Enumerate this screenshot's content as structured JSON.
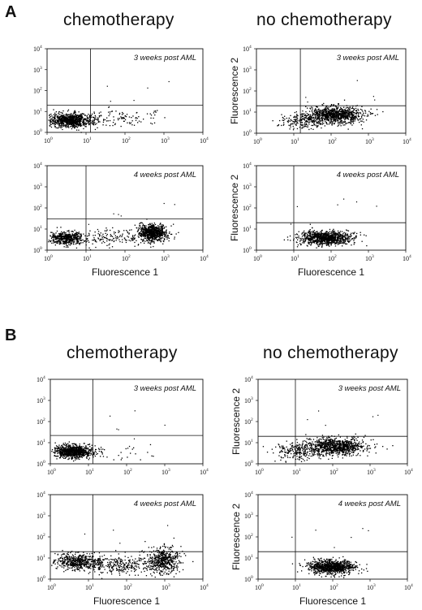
{
  "figure": {
    "panels": [
      {
        "letter": "A",
        "titles": [
          "chemotherapy",
          "no chemotherapy"
        ]
      },
      {
        "letter": "B",
        "titles": [
          "chemotherapy",
          "no chemotherapy"
        ]
      }
    ]
  },
  "chart_data": [
    {
      "type": "scatter",
      "panel": "A",
      "column": "chemotherapy",
      "annotation": "3 weeks post AML",
      "xlabel": "",
      "ylabel": "",
      "x_scale": "log",
      "y_scale": "log",
      "xlim": [
        1,
        10000
      ],
      "ylim": [
        1,
        10000
      ],
      "x_ticks": [
        "10",
        "10",
        "10",
        "10",
        "10"
      ],
      "y_ticks": [
        "10",
        "10",
        "10",
        "10",
        "10"
      ],
      "tick_exponents": [
        "0",
        "1",
        "2",
        "3",
        "4"
      ],
      "gates": {
        "x": 13,
        "y": 20
      },
      "clusters": [
        {
          "x": 4,
          "y": 4,
          "spread_x": 0.28,
          "spread_y": 0.16,
          "n": 900
        },
        {
          "x": 60,
          "y": 5,
          "spread_x": 0.55,
          "spread_y": 0.2,
          "n": 110
        }
      ]
    },
    {
      "type": "scatter",
      "panel": "A",
      "column": "no chemotherapy",
      "annotation": "3 weeks post AML",
      "xlabel": "",
      "ylabel": "Fluorescence 2",
      "x_scale": "log",
      "y_scale": "log",
      "xlim": [
        1,
        10000
      ],
      "ylim": [
        1,
        10000
      ],
      "x_ticks": [
        "10",
        "10",
        "10",
        "10",
        "10"
      ],
      "y_ticks": [
        "10",
        "10",
        "10",
        "10",
        "10"
      ],
      "tick_exponents": [
        "0",
        "1",
        "2",
        "3",
        "4"
      ],
      "gates": {
        "x": 15,
        "y": 20
      },
      "clusters": [
        {
          "x": 120,
          "y": 8,
          "spread_x": 0.38,
          "spread_y": 0.2,
          "n": 950
        },
        {
          "x": 20,
          "y": 4,
          "spread_x": 0.35,
          "spread_y": 0.2,
          "n": 200
        }
      ]
    },
    {
      "type": "scatter",
      "panel": "A",
      "column": "chemotherapy",
      "annotation": "4 weeks post AML",
      "xlabel": "Fluorescence 1",
      "ylabel": "",
      "x_scale": "log",
      "y_scale": "log",
      "xlim": [
        1,
        10000
      ],
      "ylim": [
        1,
        10000
      ],
      "x_ticks": [
        "10",
        "10",
        "10",
        "10",
        "10"
      ],
      "y_ticks": [
        "10",
        "10",
        "10",
        "10",
        "10"
      ],
      "tick_exponents": [
        "0",
        "1",
        "2",
        "3",
        "4"
      ],
      "gates": {
        "x": 10,
        "y": 30
      },
      "clusters": [
        {
          "x": 3,
          "y": 4,
          "spread_x": 0.22,
          "spread_y": 0.15,
          "n": 500
        },
        {
          "x": 500,
          "y": 7,
          "spread_x": 0.18,
          "spread_y": 0.2,
          "n": 800
        },
        {
          "x": 40,
          "y": 4,
          "spread_x": 0.45,
          "spread_y": 0.2,
          "n": 150
        }
      ]
    },
    {
      "type": "scatter",
      "panel": "A",
      "column": "no chemotherapy",
      "annotation": "4 weeks post AML",
      "xlabel": "Fluorescence 1",
      "ylabel": "Fluorescence 2",
      "x_scale": "log",
      "y_scale": "log",
      "xlim": [
        1,
        10000
      ],
      "ylim": [
        1,
        10000
      ],
      "x_ticks": [
        "10",
        "10",
        "10",
        "10",
        "10"
      ],
      "y_ticks": [
        "10",
        "10",
        "10",
        "10",
        "10"
      ],
      "tick_exponents": [
        "0",
        "1",
        "2",
        "3",
        "4"
      ],
      "gates": {
        "x": 10,
        "y": 20
      },
      "clusters": [
        {
          "x": 70,
          "y": 4,
          "spread_x": 0.35,
          "spread_y": 0.16,
          "n": 1000
        }
      ]
    },
    {
      "type": "scatter",
      "panel": "B",
      "column": "chemotherapy",
      "annotation": "3 weeks post AML",
      "xlabel": "",
      "ylabel": "",
      "x_scale": "log",
      "y_scale": "log",
      "xlim": [
        1,
        10000
      ],
      "ylim": [
        1,
        10000
      ],
      "x_ticks": [
        "10",
        "10",
        "10",
        "10",
        "10"
      ],
      "y_ticks": [
        "10",
        "10",
        "10",
        "10",
        "10"
      ],
      "tick_exponents": [
        "0",
        "1",
        "2",
        "3",
        "4"
      ],
      "gates": {
        "x": 13,
        "y": 22
      },
      "clusters": [
        {
          "x": 4,
          "y": 4,
          "spread_x": 0.25,
          "spread_y": 0.15,
          "n": 900
        },
        {
          "x": 80,
          "y": 3,
          "spread_x": 0.5,
          "spread_y": 0.2,
          "n": 30
        }
      ]
    },
    {
      "type": "scatter",
      "panel": "B",
      "column": "no chemotherapy",
      "annotation": "3 weeks post AML",
      "xlabel": "",
      "ylabel": "Fluorescence 2",
      "x_scale": "log",
      "y_scale": "log",
      "xlim": [
        1,
        10000
      ],
      "ylim": [
        1,
        10000
      ],
      "x_ticks": [
        "10",
        "10",
        "10",
        "10",
        "10"
      ],
      "y_ticks": [
        "10",
        "10",
        "10",
        "10",
        "10"
      ],
      "tick_exponents": [
        "0",
        "1",
        "2",
        "3",
        "4"
      ],
      "gates": {
        "x": 10,
        "y": 20
      },
      "clusters": [
        {
          "x": 120,
          "y": 7,
          "spread_x": 0.4,
          "spread_y": 0.2,
          "n": 950
        },
        {
          "x": 10,
          "y": 4,
          "spread_x": 0.3,
          "spread_y": 0.2,
          "n": 200
        }
      ]
    },
    {
      "type": "scatter",
      "panel": "B",
      "column": "chemotherapy",
      "annotation": "4 weeks post AML",
      "xlabel": "Fluorescence 1",
      "ylabel": "",
      "x_scale": "log",
      "y_scale": "log",
      "xlim": [
        1,
        10000
      ],
      "ylim": [
        1,
        10000
      ],
      "x_ticks": [
        "10",
        "10",
        "10",
        "10",
        "10"
      ],
      "y_ticks": [
        "10",
        "10",
        "10",
        "10",
        "10"
      ],
      "tick_exponents": [
        "0",
        "1",
        "2",
        "3",
        "4"
      ],
      "gates": {
        "x": 13,
        "y": 20
      },
      "clusters": [
        {
          "x": 5,
          "y": 7,
          "spread_x": 0.3,
          "spread_y": 0.18,
          "n": 500
        },
        {
          "x": 900,
          "y": 8,
          "spread_x": 0.2,
          "spread_y": 0.3,
          "n": 500
        },
        {
          "x": 80,
          "y": 5,
          "spread_x": 0.5,
          "spread_y": 0.22,
          "n": 300
        }
      ]
    },
    {
      "type": "scatter",
      "panel": "B",
      "column": "no chemotherapy",
      "annotation": "4 weeks post AML",
      "xlabel": "Fluorescence 1",
      "ylabel": "Fluorescence 2",
      "x_scale": "log",
      "y_scale": "log",
      "xlim": [
        1,
        10000
      ],
      "ylim": [
        1,
        10000
      ],
      "x_ticks": [
        "10",
        "10",
        "10",
        "10",
        "10"
      ],
      "y_ticks": [
        "10",
        "10",
        "10",
        "10",
        "10"
      ],
      "tick_exponents": [
        "0",
        "1",
        "2",
        "3",
        "4"
      ],
      "gates": {
        "x": 10,
        "y": 20
      },
      "clusters": [
        {
          "x": 90,
          "y": 4,
          "spread_x": 0.3,
          "spread_y": 0.16,
          "n": 950
        }
      ]
    }
  ]
}
